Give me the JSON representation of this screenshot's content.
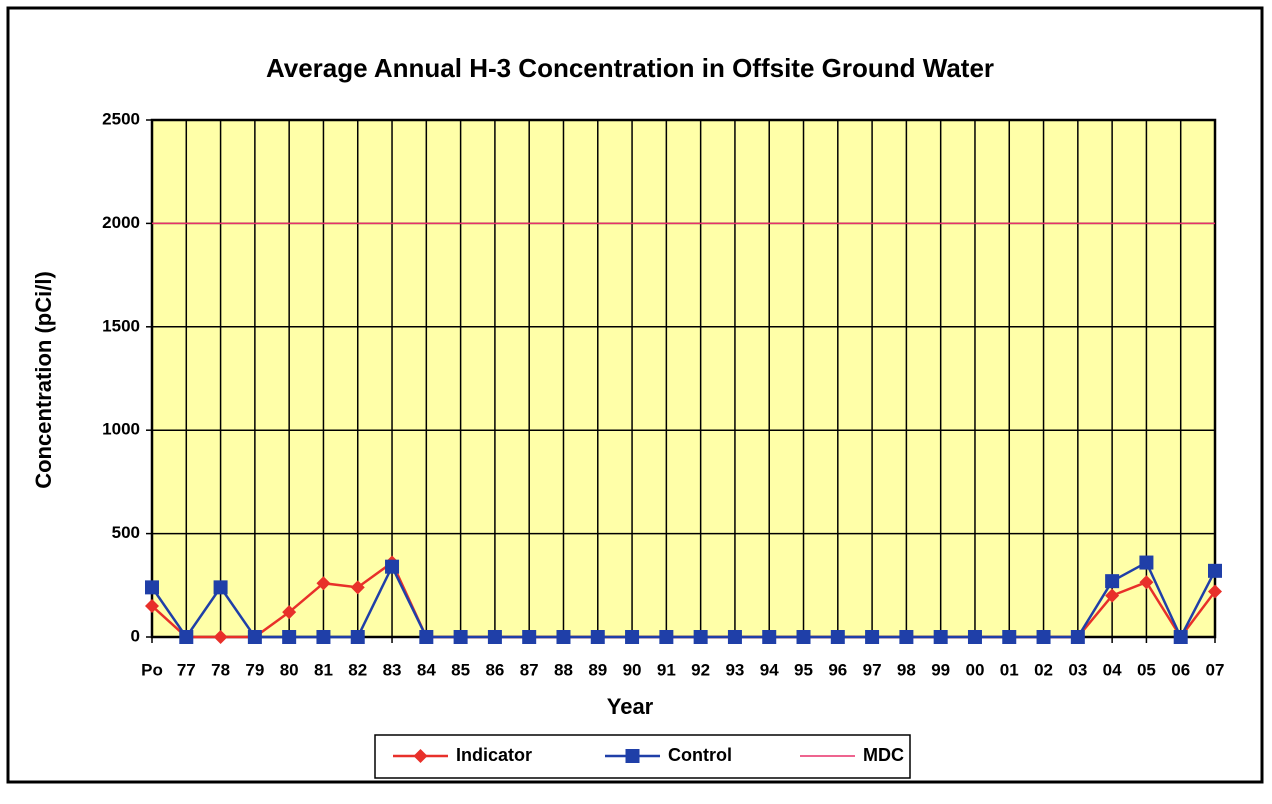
{
  "chart_data": {
    "type": "line",
    "title": "Average Annual H-3 Concentration in Offsite Ground Water",
    "x_label": "Year",
    "y_label": "Concentration (pCi/l)",
    "categories": [
      "Po",
      "77",
      "78",
      "79",
      "80",
      "81",
      "82",
      "83",
      "84",
      "85",
      "86",
      "87",
      "88",
      "89",
      "90",
      "91",
      "92",
      "93",
      "94",
      "95",
      "96",
      "97",
      "98",
      "99",
      "00",
      "01",
      "02",
      "03",
      "04",
      "05",
      "06",
      "07"
    ],
    "series": [
      {
        "name": "Indicator",
        "color": "#e8302a",
        "marker": "diamond",
        "values": [
          150,
          0,
          0,
          0,
          120,
          260,
          240,
          360,
          0,
          0,
          0,
          0,
          0,
          0,
          0,
          0,
          0,
          0,
          0,
          0,
          0,
          0,
          0,
          0,
          0,
          0,
          0,
          0,
          200,
          265,
          0,
          220
        ]
      },
      {
        "name": "Control",
        "color": "#1f3fa8",
        "marker": "square",
        "values": [
          240,
          0,
          240,
          0,
          0,
          0,
          0,
          340,
          0,
          0,
          0,
          0,
          0,
          0,
          0,
          0,
          0,
          0,
          0,
          0,
          0,
          0,
          0,
          0,
          0,
          0,
          0,
          0,
          270,
          360,
          0,
          320
        ]
      },
      {
        "name": "MDC",
        "color": "#e8306a",
        "marker": "none",
        "values": [
          2000,
          2000,
          2000,
          2000,
          2000,
          2000,
          2000,
          2000,
          2000,
          2000,
          2000,
          2000,
          2000,
          2000,
          2000,
          2000,
          2000,
          2000,
          2000,
          2000,
          2000,
          2000,
          2000,
          2000,
          2000,
          2000,
          2000,
          2000,
          2000,
          2000,
          2000,
          2000
        ]
      }
    ],
    "ylim": [
      0,
      2500
    ],
    "yticks": [
      0,
      500,
      1000,
      1500,
      2000,
      2500
    ],
    "grid": true,
    "plot_background": "#ffffa8",
    "legend": "bottom"
  }
}
